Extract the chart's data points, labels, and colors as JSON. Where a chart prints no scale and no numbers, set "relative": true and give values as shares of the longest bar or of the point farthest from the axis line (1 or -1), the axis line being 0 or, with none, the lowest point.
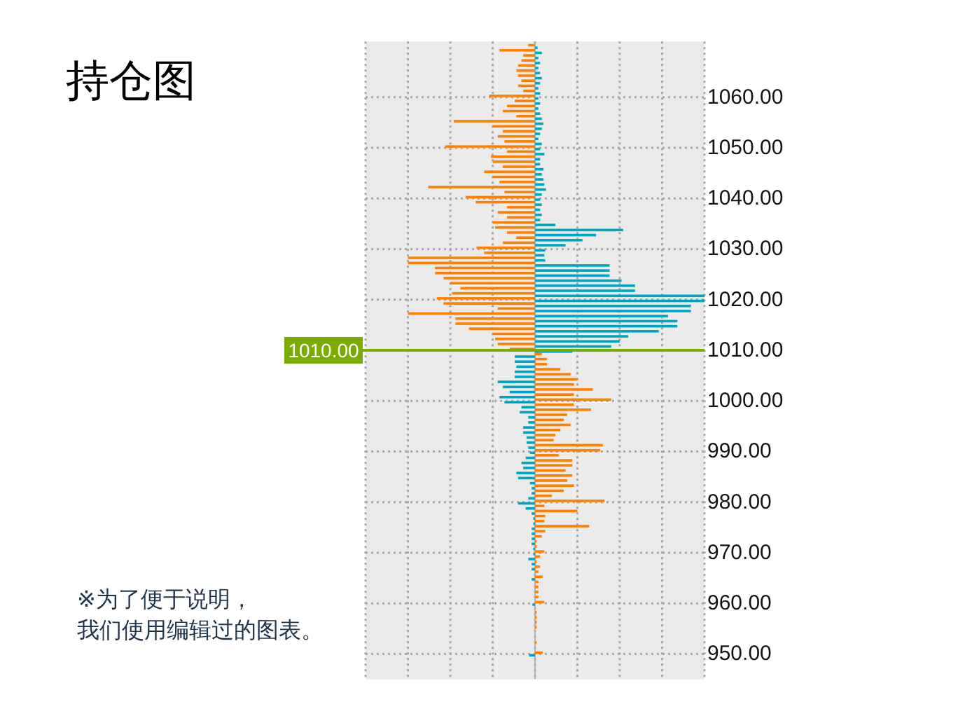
{
  "chart_data": {
    "type": "bar",
    "orientation": "horizontal",
    "relative": true,
    "title": "持仓图",
    "annotations": [
      "※为了便于说明，",
      "我们使用编辑过的图表。"
    ],
    "x": [
      1070,
      1069,
      1068,
      1067,
      1066,
      1065,
      1064,
      1063,
      1062,
      1061,
      1060,
      1059,
      1058,
      1057,
      1056,
      1055,
      1054,
      1053,
      1052,
      1051,
      1050,
      1049,
      1048,
      1047,
      1046,
      1045,
      1044,
      1043,
      1042,
      1041,
      1040,
      1039,
      1038,
      1037,
      1036,
      1035,
      1034,
      1033,
      1032,
      1031,
      1030,
      1029,
      1028,
      1027,
      1026,
      1025,
      1024,
      1023,
      1022,
      1021,
      1020,
      1019,
      1018,
      1017,
      1016,
      1015,
      1014,
      1013,
      1012,
      1011,
      1010,
      1009,
      1008,
      1007,
      1006,
      1005,
      1004,
      1003,
      1002,
      1001,
      1000,
      999,
      998,
      997,
      996,
      995,
      994,
      993,
      992,
      991,
      990,
      989,
      988,
      987,
      986,
      985,
      984,
      983,
      982,
      981,
      980,
      979,
      978,
      977,
      976,
      975,
      974,
      973,
      972,
      971,
      970,
      969,
      968,
      967,
      966,
      965,
      964,
      963,
      962,
      961,
      960,
      959,
      958,
      957,
      956,
      955,
      954,
      953,
      952,
      951,
      950
    ],
    "series": [
      {
        "color": "#ff8000",
        "values": [
          -0.04,
          -0.21,
          -0.07,
          -0.08,
          -0.1,
          -0.11,
          -0.1,
          -0.08,
          -0.1,
          -0.07,
          -0.27,
          -0.12,
          -0.165,
          -0.19,
          -0.11,
          -0.48,
          -0.25,
          -0.19,
          -0.22,
          -0.18,
          -0.53,
          -0.165,
          -0.26,
          -0.25,
          -0.19,
          -0.3,
          -0.25,
          -0.21,
          -0.63,
          -0.18,
          -0.41,
          -0.35,
          -0.165,
          -0.22,
          -0.165,
          -0.25,
          -0.235,
          -0.165,
          -0.11,
          -0.19,
          -0.345,
          -0.3,
          -0.75,
          -0.75,
          -0.59,
          -0.59,
          -0.54,
          -0.5,
          -0.44,
          -0.49,
          -0.58,
          -0.54,
          -0.22,
          -0.75,
          -0.47,
          -0.47,
          -0.39,
          -0.25,
          -0.235,
          -0.22,
          -0.15,
          0.04,
          0.07,
          0.07,
          0.15,
          0.21,
          0.25,
          0.23,
          0.34,
          0.23,
          0.45,
          0.23,
          0.33,
          0.19,
          0.17,
          0.21,
          0.15,
          0.12,
          0.11,
          0.4,
          0.385,
          0.14,
          0.22,
          0.22,
          0.18,
          0.22,
          0.19,
          0.23,
          0.17,
          0.1,
          0.41,
          0.055,
          0.25,
          0.06,
          0.055,
          0.32,
          0.06,
          0.04,
          0.01,
          0.01,
          0.055,
          0.03,
          0.01,
          0.03,
          0.02,
          0.045,
          0.02,
          0.02,
          0.02,
          0.02,
          0.055,
          null,
          0.01,
          0.01,
          0.01,
          0.01,
          null,
          null,
          0.01,
          null,
          0.045
        ]
      },
      {
        "color": "#00a5c0",
        "values": [
          0.015,
          0.04,
          0.02,
          0.03,
          0.02,
          0.03,
          0.04,
          0.03,
          0.02,
          0.03,
          0.02,
          0.03,
          0.02,
          0.03,
          0.04,
          0.05,
          0.04,
          0.03,
          0.02,
          0.04,
          0.03,
          0.055,
          0.03,
          0.03,
          0.05,
          0.04,
          0.05,
          0.055,
          0.065,
          0.04,
          0.03,
          0.04,
          0.03,
          0.04,
          0.03,
          0.12,
          0.52,
          0.36,
          0.28,
          0.18,
          0.06,
          0.055,
          0.06,
          0.44,
          0.44,
          0.44,
          0.51,
          0.59,
          0.59,
          1,
          1,
          0.92,
          0.92,
          0.785,
          0.84,
          0.84,
          0.73,
          0.55,
          0.5,
          0.45,
          0.22,
          -0.12,
          -0.12,
          -0.11,
          -0.12,
          -0.12,
          -0.22,
          -0.19,
          -0.15,
          -0.21,
          -0.18,
          -0.08,
          -0.09,
          -0.04,
          -0.04,
          -0.07,
          -0.07,
          -0.05,
          -0.05,
          -0.04,
          -0.03,
          -0.055,
          -0.08,
          -0.07,
          -0.11,
          -0.1,
          -0.03,
          -0.02,
          -0.02,
          -0.04,
          -0.1,
          -0.055,
          -0.02,
          -0.01,
          -0.01,
          -0.02,
          -0.02,
          -0.02,
          -0.02,
          -0.01,
          -0.01,
          -0.04,
          -0.02,
          -0.02,
          null,
          -0.02,
          null,
          null,
          null,
          null,
          -0.015,
          null,
          null,
          null,
          null,
          null,
          null,
          null,
          null,
          null,
          -0.035
        ]
      }
    ],
    "ylim": [
      945,
      1071
    ],
    "yticks": [
      {
        "value": 950,
        "label": "950.00"
      },
      {
        "value": 960,
        "label": "960.00"
      },
      {
        "value": 970,
        "label": "970.00"
      },
      {
        "value": 980,
        "label": "980.00"
      },
      {
        "value": 990,
        "label": "990.00"
      },
      {
        "value": 1000,
        "label": "1000.00"
      },
      {
        "value": 1010,
        "label": "1010.00"
      },
      {
        "value": 1020,
        "label": "1020.00"
      },
      {
        "value": 1030,
        "label": "1030.00"
      },
      {
        "value": 1040,
        "label": "1040.00"
      },
      {
        "value": 1050,
        "label": "1050.00"
      },
      {
        "value": 1060,
        "label": "1060.00"
      }
    ],
    "grid": true,
    "ref_lines": [
      {
        "axis": "y",
        "value": 1010,
        "label": "1010.00",
        "color": "#7aab00"
      }
    ]
  }
}
